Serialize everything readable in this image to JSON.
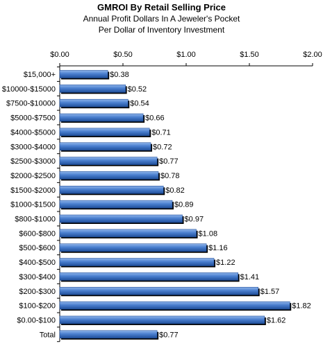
{
  "chart_data": {
    "type": "bar",
    "orientation": "horizontal",
    "title": "GMROI By Retail Selling Price",
    "subtitle_lines": [
      "Annual Profit Dollars In A Jeweler's Pocket",
      "Per Dollar of Inventory Investment"
    ],
    "xlim": [
      0,
      2
    ],
    "x_ticks": [
      0,
      0.5,
      1,
      1.5,
      2
    ],
    "x_tick_labels": [
      "$0.00",
      "$0.50",
      "$1.00",
      "$1.50",
      "$2.00"
    ],
    "x_axis_position": "top",
    "grid": false,
    "categories": [
      "$15,000+",
      "$10000-$15000",
      "$7500-$10000",
      "$5000-$7500",
      "$4000-$5000",
      "$3000-$4000",
      "$2500-$3000",
      "$2000-$2500",
      "$1500-$2000",
      "$1000-$1500",
      "$800-$1000",
      "$600-$800",
      "$500-$600",
      "$400-$500",
      "$300-$400",
      "$200-$300",
      "$100-$200",
      "$0.00-$100",
      "Total"
    ],
    "values": [
      0.38,
      0.52,
      0.54,
      0.66,
      0.71,
      0.72,
      0.77,
      0.78,
      0.82,
      0.89,
      0.97,
      1.08,
      1.16,
      1.22,
      1.41,
      1.57,
      1.82,
      1.62,
      0.77
    ],
    "value_labels": [
      "$0.38",
      "$0.52",
      "$0.54",
      "$0.66",
      "$0.71",
      "$0.72",
      "$0.77",
      "$0.78",
      "$0.82",
      "$0.89",
      "$0.97",
      "$1.08",
      "$1.16",
      "$1.22",
      "$1.41",
      "$1.57",
      "$1.82",
      "$1.62",
      "$0.77"
    ],
    "colors": {
      "bar": "#4a7fcf",
      "bar_dark": "#1f4e99",
      "shadow": "#000000"
    }
  }
}
